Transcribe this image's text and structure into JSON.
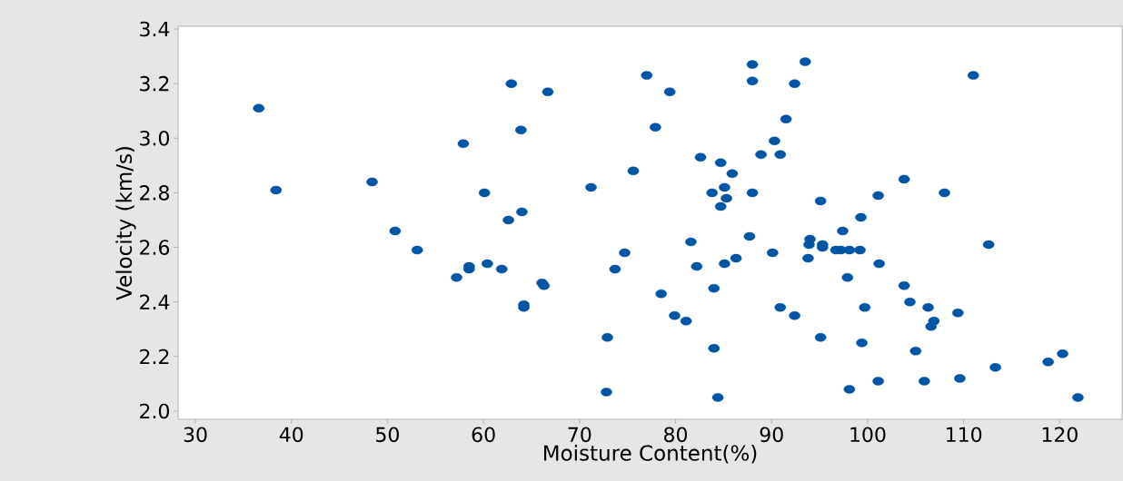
{
  "chart_data": {
    "type": "scatter",
    "xlabel": "Moisture Content(%)",
    "ylabel": "Velocity (km/s)",
    "color": "#0055a5",
    "marker": "circle",
    "xlim": [
      28.2,
      126.5
    ],
    "ylim": [
      1.97,
      3.41
    ],
    "xticks": [
      30,
      40,
      50,
      60,
      70,
      80,
      90,
      100,
      110,
      120
    ],
    "yticks": [
      {
        "value": 2.0,
        "label": "2.0"
      },
      {
        "value": 2.2,
        "label": "2.2"
      },
      {
        "value": 2.4,
        "label": "2.4"
      },
      {
        "value": 2.6,
        "label": "2.6"
      },
      {
        "value": 2.8,
        "label": "2.8"
      },
      {
        "value": 3.0,
        "label": "3.0"
      },
      {
        "value": 3.2,
        "label": "3.2"
      },
      {
        "value": 3.4,
        "label": "3.4"
      }
    ],
    "x": [
      36.6,
      38.4,
      48.4,
      50.8,
      53.1,
      57.2,
      58.5,
      58.5,
      57.9,
      60.1,
      60.4,
      61.9,
      62.6,
      62.9,
      64.0,
      63.9,
      64.2,
      64.2,
      66.1,
      66.3,
      66.7,
      71.2,
      72.9,
      72.8,
      73.7,
      74.7,
      75.6,
      77.0,
      77.9,
      78.5,
      79.4,
      79.9,
      81.1,
      81.6,
      82.2,
      82.6,
      83.8,
      84.0,
      84.0,
      84.7,
      84.7,
      85.1,
      85.3,
      85.1,
      85.9,
      86.3,
      84.4,
      87.7,
      88.0,
      88.0,
      88.0,
      88.9,
      90.3,
      90.1,
      91.5,
      90.9,
      90.9,
      92.4,
      92.4,
      93.5,
      93.8,
      94.0,
      93.9,
      95.1,
      95.3,
      95.3,
      95.1,
      96.7,
      97.2,
      97.4,
      97.9,
      98.1,
      98.1,
      99.2,
      99.3,
      99.4,
      99.7,
      101.1,
      101.2,
      101.1,
      103.8,
      103.8,
      104.4,
      105.0,
      105.9,
      106.3,
      106.9,
      106.6,
      108.0,
      109.4,
      109.6,
      111.0,
      112.6,
      113.3,
      118.8,
      120.3,
      121.9
    ],
    "values": [
      3.11,
      2.81,
      2.84,
      2.66,
      2.59,
      2.49,
      2.53,
      2.52,
      2.98,
      2.8,
      2.54,
      2.52,
      2.7,
      3.2,
      2.73,
      3.03,
      2.39,
      2.38,
      2.47,
      2.46,
      3.17,
      2.82,
      2.27,
      2.07,
      2.52,
      2.58,
      2.88,
      3.23,
      3.04,
      2.43,
      3.17,
      2.35,
      2.33,
      2.62,
      2.53,
      2.93,
      2.8,
      2.45,
      2.23,
      2.91,
      2.75,
      2.82,
      2.78,
      2.54,
      2.87,
      2.56,
      2.05,
      2.64,
      3.27,
      3.21,
      2.8,
      2.94,
      2.99,
      2.58,
      3.07,
      2.94,
      2.38,
      3.2,
      2.35,
      3.28,
      2.56,
      2.63,
      2.61,
      2.77,
      2.61,
      2.6,
      2.27,
      2.59,
      2.59,
      2.66,
      2.49,
      2.59,
      2.08,
      2.59,
      2.71,
      2.25,
      2.38,
      2.79,
      2.54,
      2.11,
      2.46,
      2.85,
      2.4,
      2.22,
      2.11,
      2.38,
      2.33,
      2.31,
      2.8,
      2.36,
      2.12,
      3.23,
      2.61,
      2.16,
      2.18,
      2.21,
      2.05
    ]
  }
}
